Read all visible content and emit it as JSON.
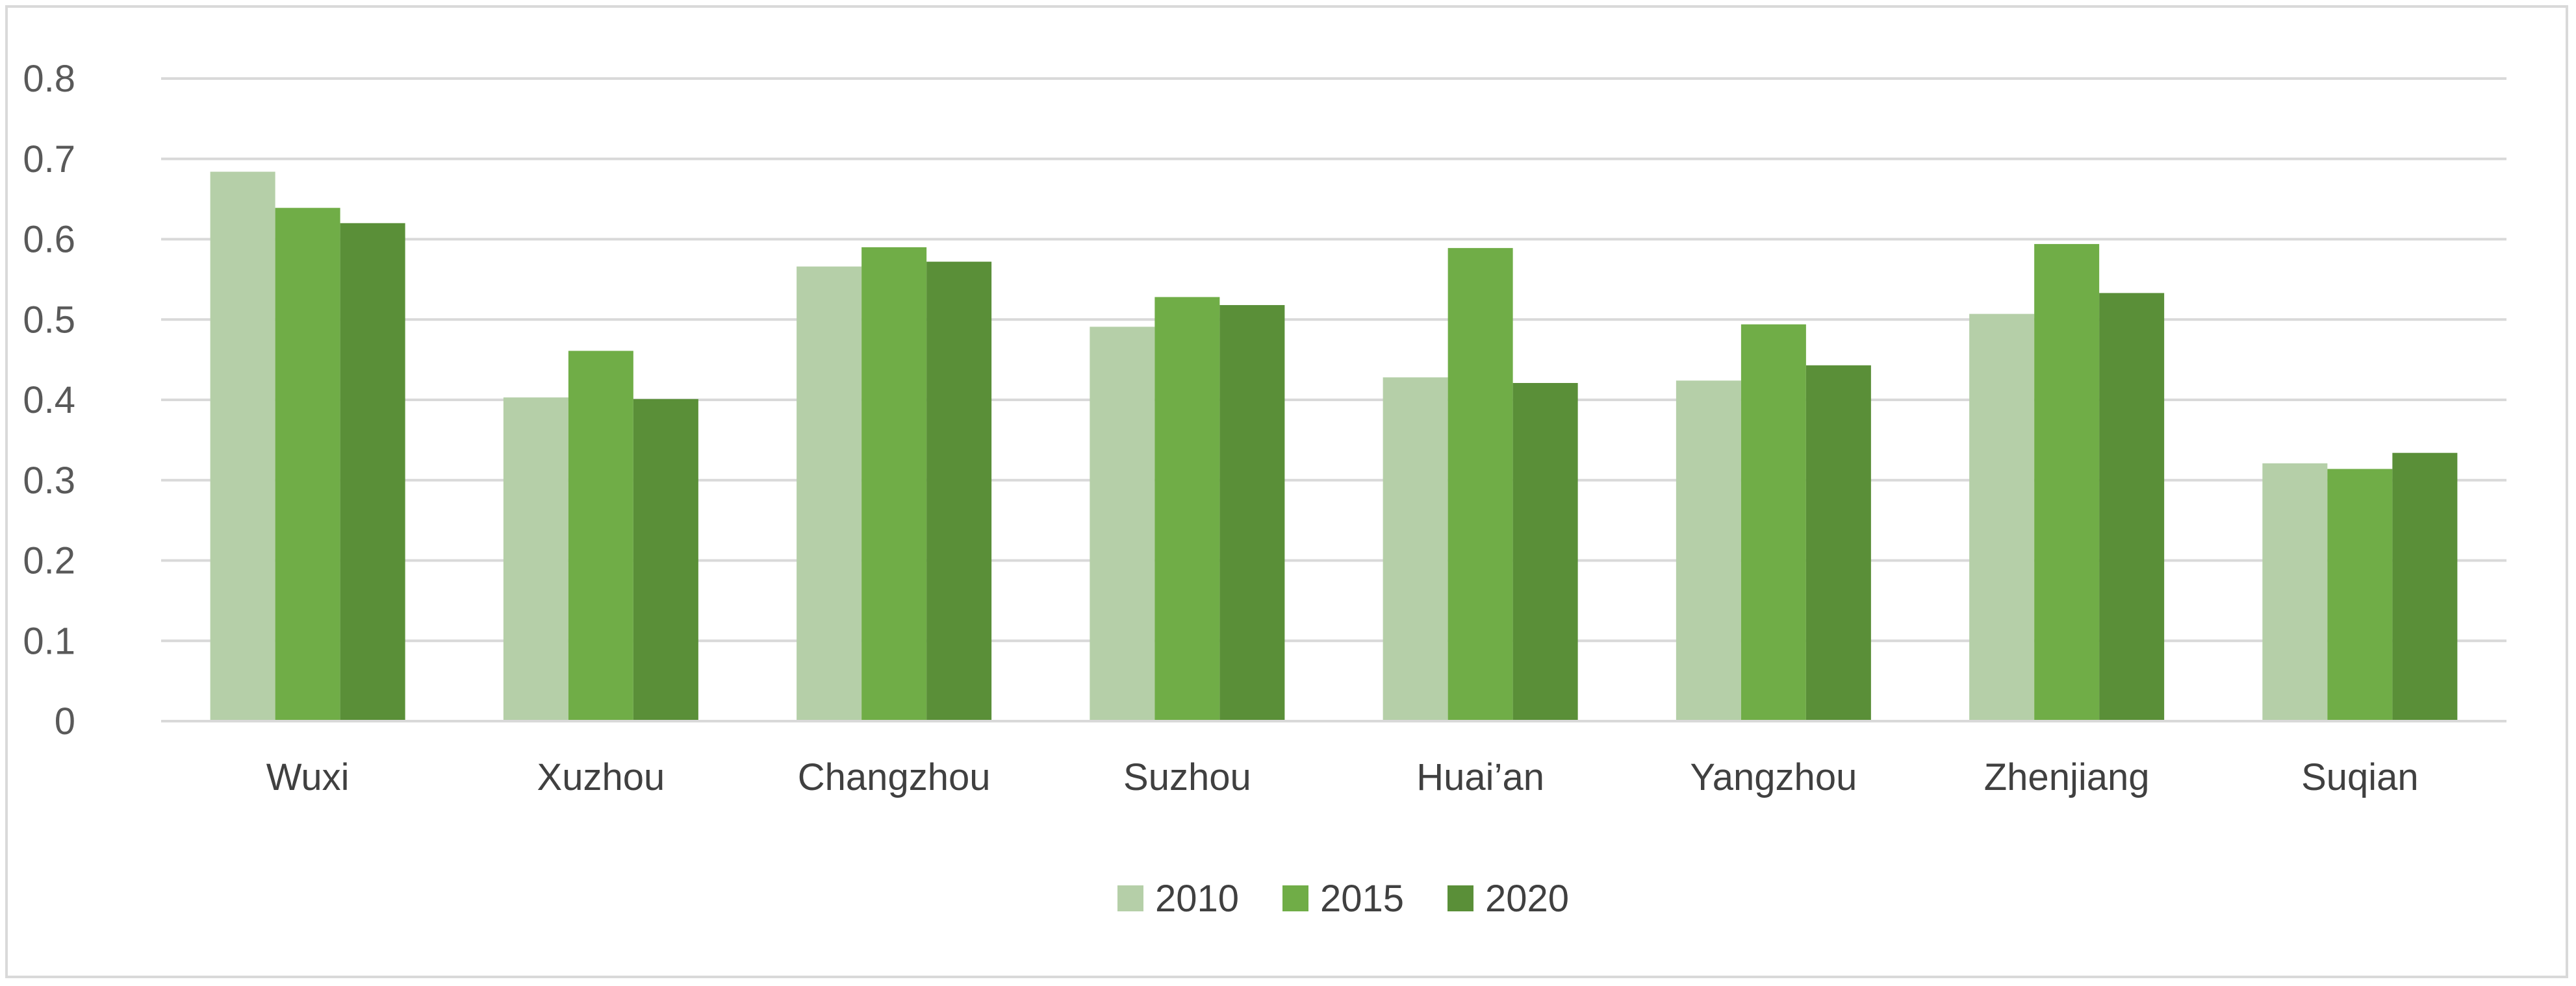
{
  "chart_data": {
    "type": "bar",
    "categories": [
      "Wuxi",
      "Xuzhou",
      "Changzhou",
      "Suzhou",
      "Huai’an",
      "Yangzhou",
      "Zhenjiang",
      "Suqian"
    ],
    "series": [
      {
        "name": "2010",
        "color": "#b5cfa8",
        "values": [
          0.684,
          0.403,
          0.566,
          0.491,
          0.428,
          0.424,
          0.507,
          0.321
        ]
      },
      {
        "name": "2015",
        "color": "#70ad47",
        "values": [
          0.639,
          0.461,
          0.59,
          0.528,
          0.589,
          0.494,
          0.594,
          0.314
        ]
      },
      {
        "name": "2020",
        "color": "#5a8f38",
        "values": [
          0.62,
          0.401,
          0.572,
          0.518,
          0.421,
          0.443,
          0.533,
          0.334
        ]
      }
    ],
    "y_ticks": [
      "0",
      "0.1",
      "0.2",
      "0.3",
      "0.4",
      "0.5",
      "0.6",
      "0.7",
      "0.8"
    ],
    "ylim": [
      0,
      0.8
    ],
    "grid": true,
    "gridline_color": "#d9d9d9",
    "legend_position": "bottom"
  }
}
